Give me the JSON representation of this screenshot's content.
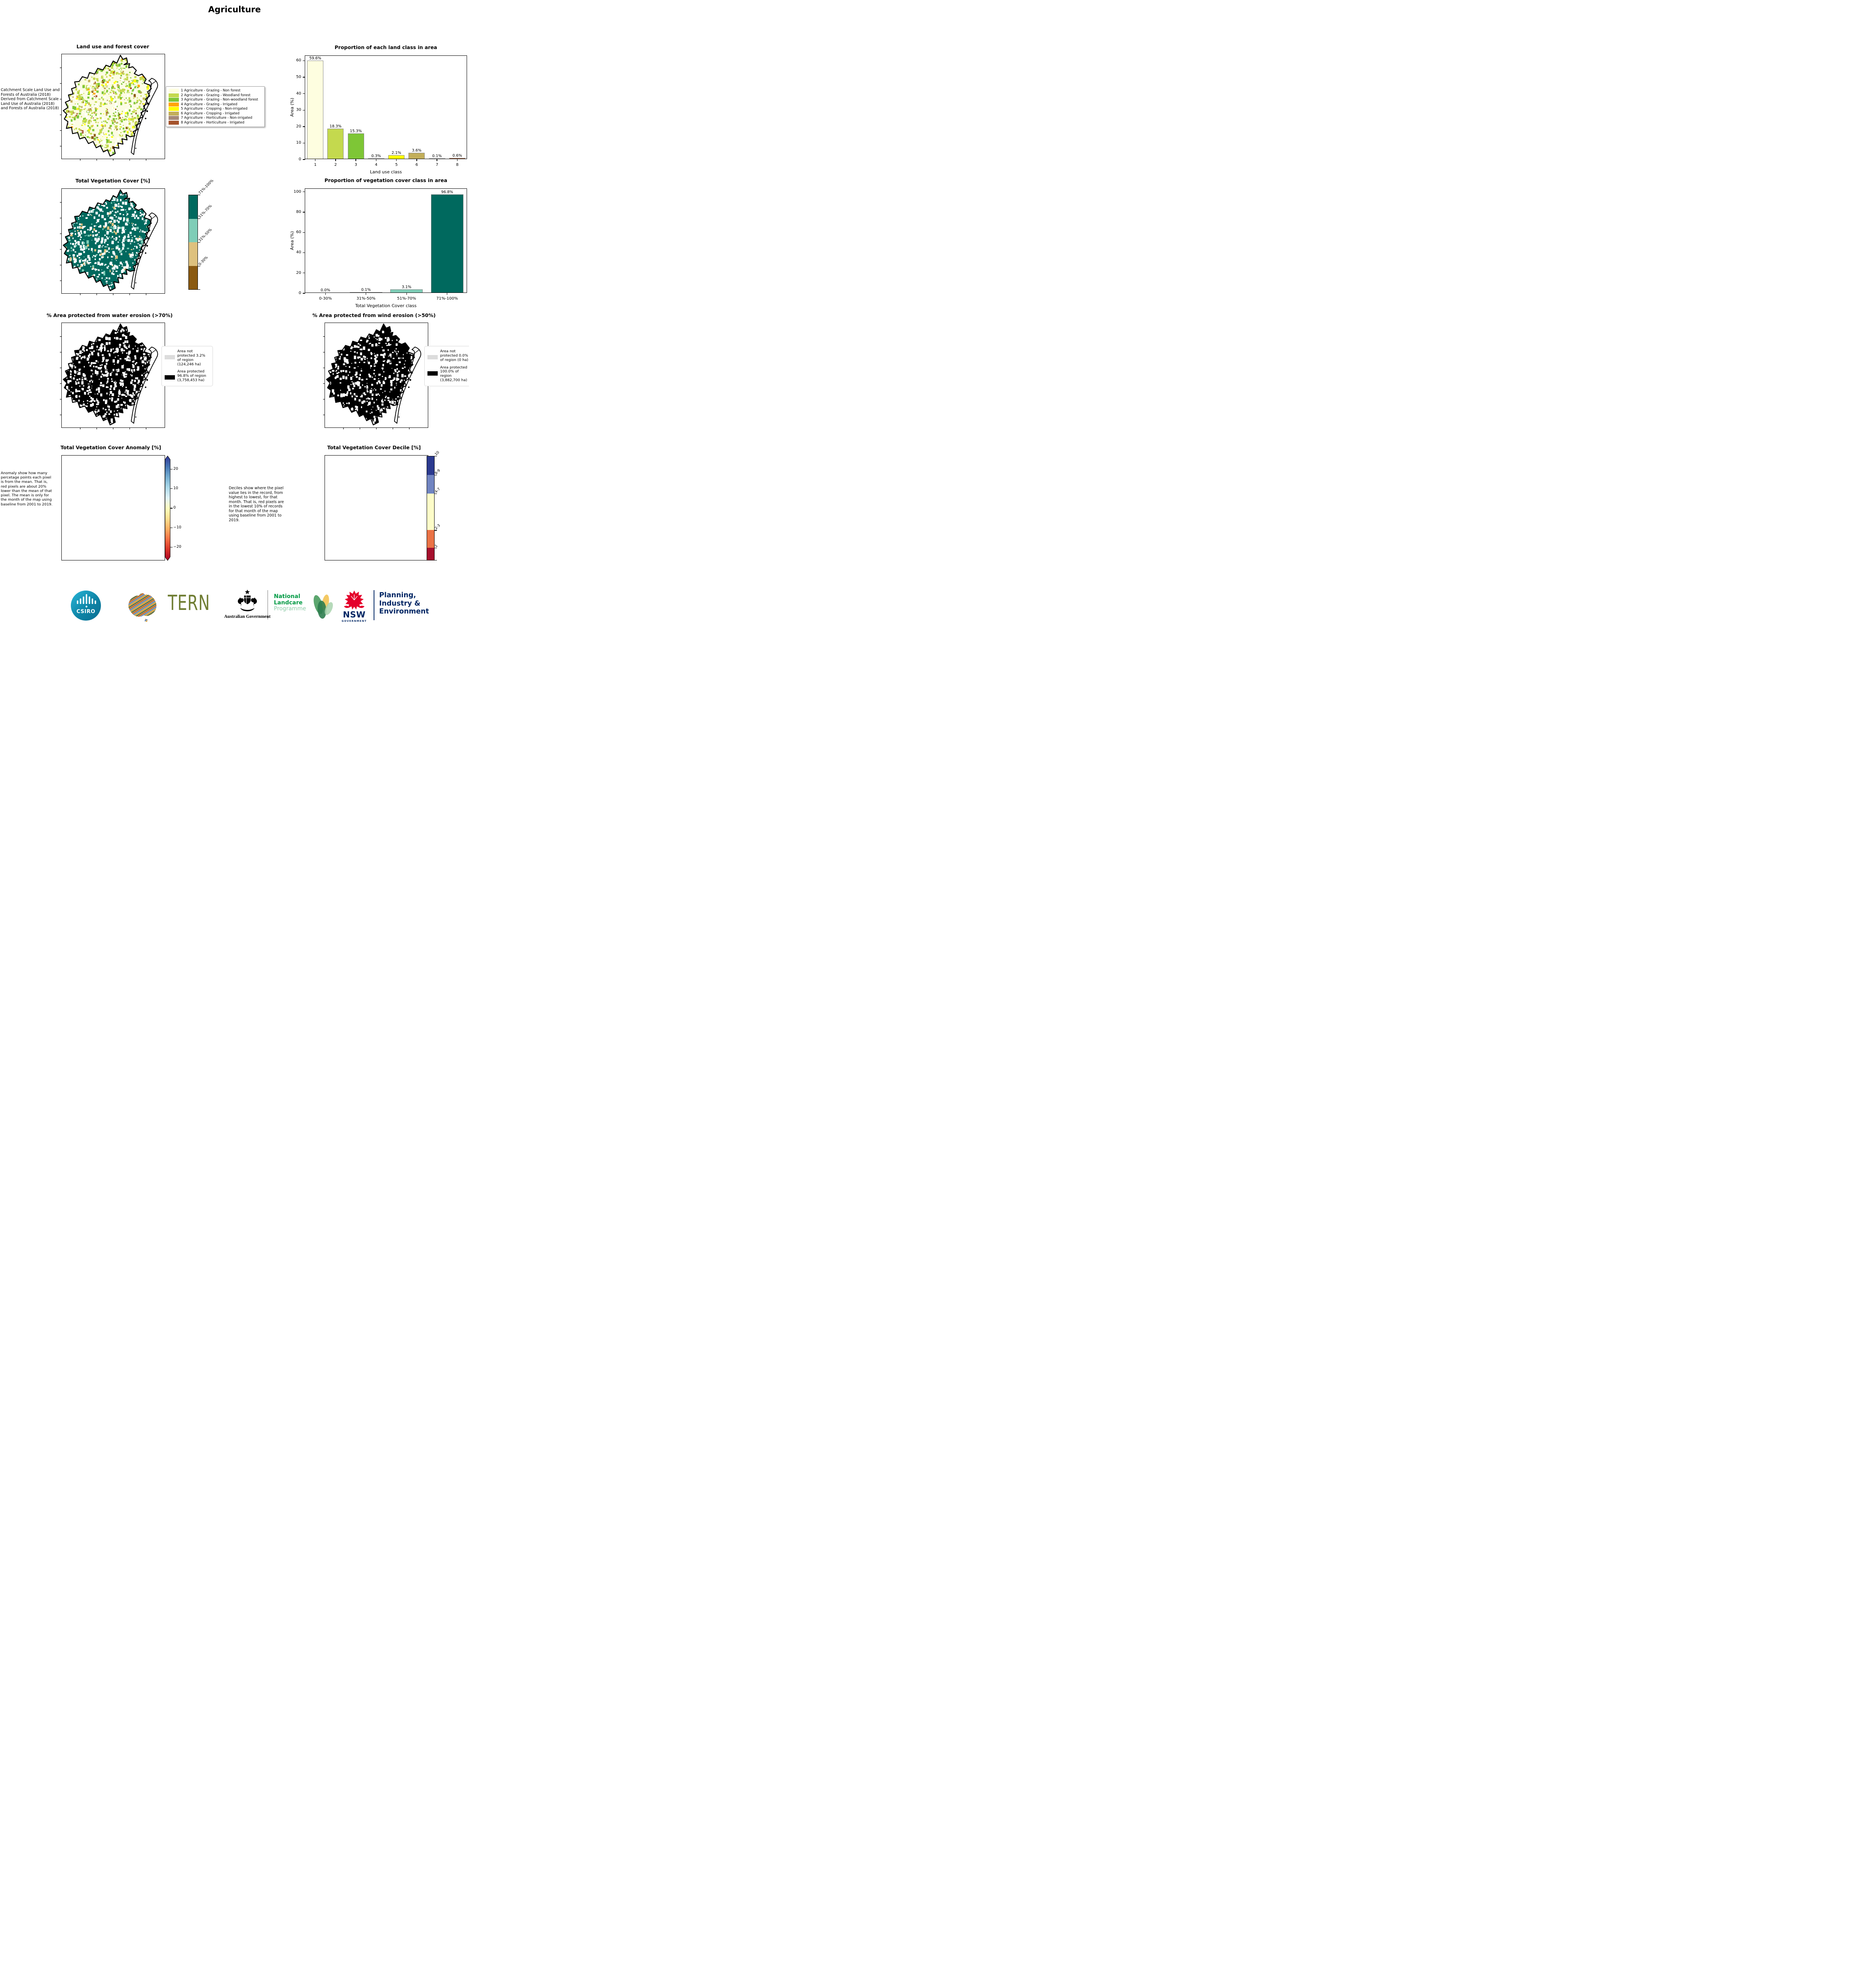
{
  "header": {
    "title": "Agriculture"
  },
  "landuse": {
    "title": "Land use and forest cover",
    "caption": " Catchment Scale Land Use and Forests of Australia (2018) Derived from Catchment Scale Land Use of Australia (2018) and Forests of Australia (2018)",
    "legend": [
      {
        "color": "#FEFEE0",
        "label": "1 Agriculture - Grazing - Non forest"
      },
      {
        "color": "#C4D94E",
        "label": "2 Agriculture - Grazing - Woodland forest"
      },
      {
        "color": "#7EC636",
        "label": "3 Agriculture - Grazing - Non-woodland forest"
      },
      {
        "color": "#FFA500",
        "label": "4 Agriculture - Grazing - Irrigated"
      },
      {
        "color": "#FFFF00",
        "label": "5 Agriculture - Cropping - Non-irrigated"
      },
      {
        "color": "#C2AE5A",
        "label": "6 Agriculture - Cropping - Irrigated"
      },
      {
        "color": "#A5897B",
        "label": "7 Agriculture - Horticulture - Non-irrigated"
      },
      {
        "color": "#A5532C",
        "label": "8 Agriculture - Horticulture - Irrigated"
      }
    ]
  },
  "chart_data": [
    {
      "type": "bar",
      "title": "Proportion of each land class in area",
      "xlabel": "Land use class",
      "ylabel": "Area (%)",
      "categories": [
        "1",
        "2",
        "3",
        "4",
        "5",
        "6",
        "7",
        "8"
      ],
      "values": [
        59.6,
        18.3,
        15.3,
        0.3,
        2.1,
        3.6,
        0.1,
        0.6
      ],
      "bar_labels": [
        "59.6%",
        "18.3%",
        "15.3%",
        "0.3%",
        "2.1%",
        "3.6%",
        "0.1%",
        "0.6%"
      ],
      "colors": [
        "#FEFEE0",
        "#C4D94E",
        "#7EC636",
        "#FFA500",
        "#FFFF00",
        "#C2AE5A",
        "#A5897B",
        "#A5532C"
      ],
      "ylim": [
        0,
        63
      ],
      "yticks": [
        0,
        10,
        20,
        30,
        40,
        50,
        60
      ],
      "grid": false,
      "legend_position": "none"
    },
    {
      "type": "bar",
      "title": "Proportion of vegetation cover class in area",
      "xlabel": "Total Vegetation Cover class",
      "ylabel": "Area (%)",
      "categories": [
        "0-30%",
        "31%-50%",
        "51%-70%",
        "71%-100%"
      ],
      "values": [
        0.0,
        0.1,
        3.1,
        96.8
      ],
      "bar_labels": [
        "0.0%",
        "0.1%",
        "3.1%",
        "96.8%"
      ],
      "colors": [
        "#8A5A12",
        "#DEC17E",
        "#7FCDB7",
        "#00695E"
      ],
      "ylim": [
        0,
        103
      ],
      "yticks": [
        0,
        20,
        40,
        60,
        80,
        100
      ],
      "grid": false,
      "legend_position": "none"
    }
  ],
  "veg": {
    "title": "Total Vegetation Cover [%]",
    "colorbar": {
      "colors": [
        "#00695E",
        "#7FCDB7",
        "#DEC17E",
        "#8A5A12"
      ],
      "heights": [
        25,
        25,
        25,
        25
      ],
      "labels": [
        "71%-100%",
        "51%-70%",
        "31%-50%",
        "0-30%"
      ]
    }
  },
  "water": {
    "title": "% Area protected from water erosion (>70%)",
    "legend": [
      {
        "color": "#DCDCDC",
        "label": "Area not protected 3.2% of region (124,246 ha)"
      },
      {
        "color": "#000000",
        "label": "Area protected 96.8% of region (3,758,453 ha)"
      }
    ]
  },
  "wind": {
    "title": "% Area protected from wind erosion (>50%)",
    "legend": [
      {
        "color": "#DCDCDC",
        "label": "Area not protected 0.0% of region (0 ha)"
      },
      {
        "color": "#000000",
        "label": "Area protected 100.0% of region (3,882,700 ha)"
      }
    ]
  },
  "anomaly": {
    "title": "Total Vegetation Cover Anomaly [%]",
    "caption": "Anomaly show how many percetage points each pixel is from the mean. That is, red pixels are about 20% lower than the mean of that pixel. The mean is only for the month of the map using baseline from 2001 to 2019.",
    "ticks": [
      "20",
      "10",
      "0",
      "−10",
      "−20"
    ],
    "gradient": [
      "#313695",
      "#4575b4",
      "#74add1",
      "#abd9e9",
      "#e0f3f8",
      "#ffffbf",
      "#fee090",
      "#fdae61",
      "#f46d43",
      "#d73027",
      "#a50026"
    ]
  },
  "decile": {
    "title": "Total Vegetation Cover Decile [%]",
    "caption": "Deciles show where the pixel value lies in the record, from highest to lowest, for that month. That is, red pixels are in the lowest 10% of records for that month of the map using baseline from 2001 to 2019.",
    "colorbar": {
      "colors": [
        "#2B3A8F",
        "#7084C1",
        "#FDFCC8",
        "#EA7245",
        "#A50F2D"
      ],
      "heights": [
        18,
        18,
        35,
        17,
        12
      ],
      "labels": [
        "10",
        "8-9",
        "4-7",
        "2-3",
        "1"
      ]
    }
  },
  "footer": {
    "csiro": "CSIRO",
    "tern": "TERN",
    "aus_gov": "Australian Government",
    "landcare_1": "National",
    "landcare_2": "Landcare",
    "landcare_3": "Programme",
    "nsw": "NSW",
    "nsw_sub": "GOVERNMENT",
    "planning_1": "Planning,",
    "planning_2": "Industry &",
    "planning_3": "Environment"
  },
  "map_styles": {
    "landuse": {
      "base": "#FCFCE3",
      "n": 1700,
      "speckles": [
        [
          "#C4D94E",
          26
        ],
        [
          "#7EC636",
          16
        ],
        [
          "#ffffff",
          16
        ],
        [
          "#C2AE5A",
          5
        ],
        [
          "#FFFF00",
          4
        ],
        [
          "#8A5A12",
          2
        ],
        [
          "#A5532C",
          1.5
        ],
        [
          "#FFA500",
          1
        ]
      ]
    },
    "veg": {
      "base": "#00695E",
      "n": 1100,
      "speckles": [
        [
          "#ffffff",
          20
        ],
        [
          "#7FCDB7",
          3
        ],
        [
          "#DEC17E",
          2
        ]
      ]
    },
    "water": {
      "base": "#000000",
      "n": 950,
      "speckles": [
        [
          "#ffffff",
          22
        ]
      ]
    },
    "wind": {
      "base": "#000000",
      "n": 700,
      "speckles": [
        [
          "#ffffff",
          16
        ]
      ]
    },
    "anomaly": {
      "base": "#FEFBDC",
      "n": 1600,
      "speckles": [
        [
          "#F4E3A9",
          16
        ],
        [
          "#FBCB8B",
          14
        ],
        [
          "#F08A4B",
          10
        ],
        [
          "#D73027",
          7
        ],
        [
          "#C7E0EE",
          7
        ],
        [
          "#8FB8DA",
          4
        ],
        [
          "#ffffff",
          9
        ]
      ]
    },
    "decile": {
      "base": "#F8F3D8",
      "n": 1600,
      "speckles": [
        [
          "#C32B2B",
          16
        ],
        [
          "#EA7245",
          12
        ],
        [
          "#8C9FD0",
          11
        ],
        [
          "#2B3A8F",
          7
        ],
        [
          "#FDFCC8",
          8
        ],
        [
          "#ffffff",
          8
        ]
      ]
    }
  }
}
